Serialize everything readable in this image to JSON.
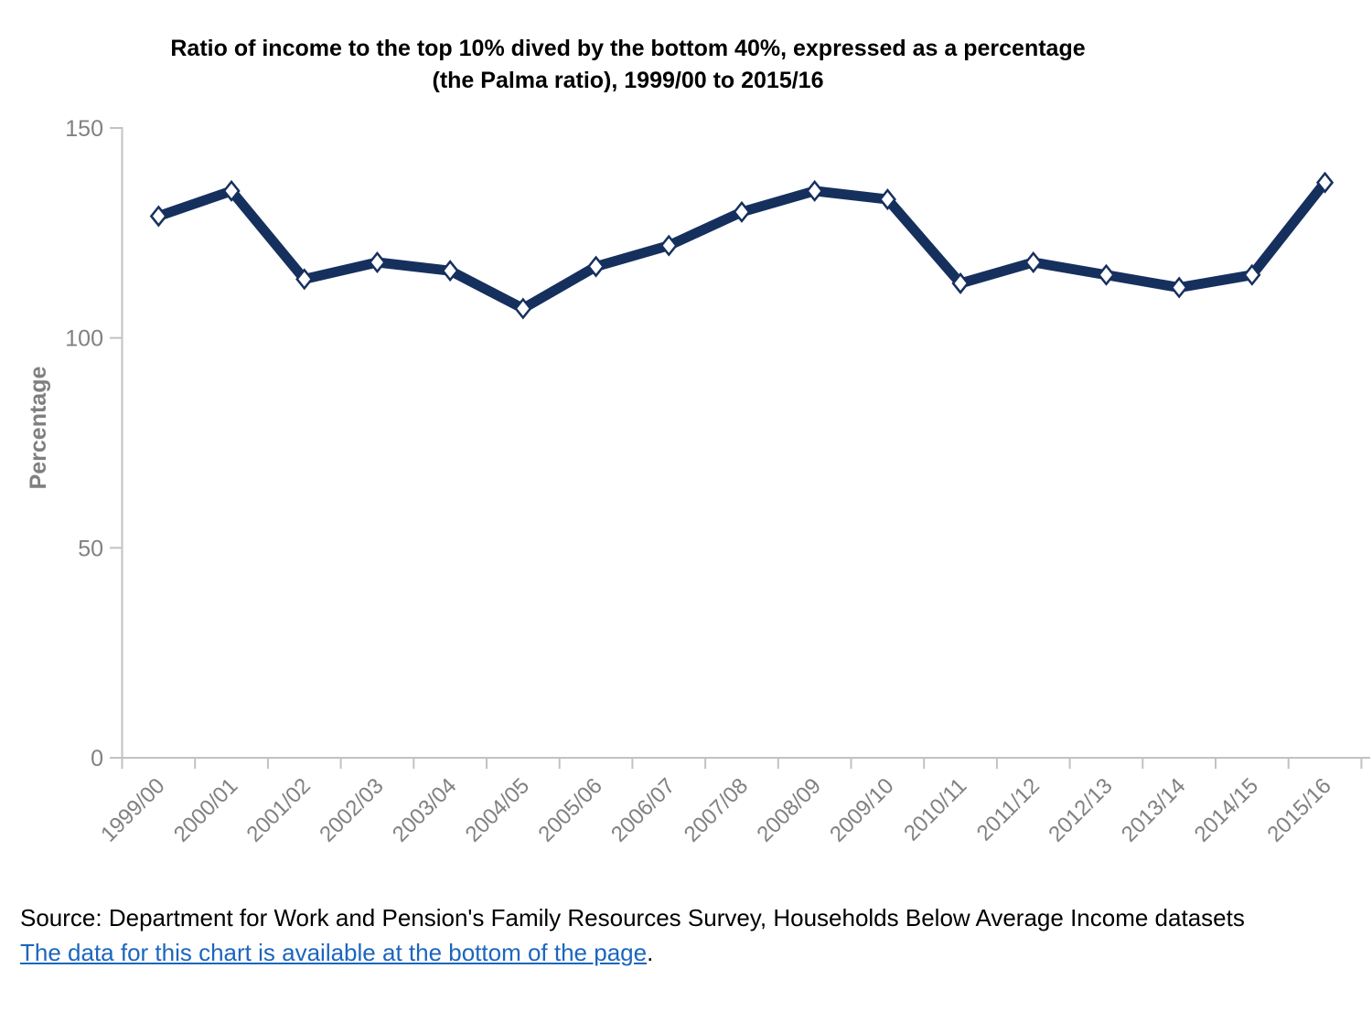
{
  "title": {
    "line1": "Ratio of income to the top 10% dived by the bottom 40%, expressed as a percentage",
    "line2": "(the Palma ratio), 1999/00 to 2015/16"
  },
  "chart_data": {
    "type": "line",
    "title": "Ratio of income to the top 10% dived by the bottom 40%, expressed as a percentage (the Palma ratio), 1999/00 to 2015/16",
    "categories": [
      "1999/00",
      "2000/01",
      "2001/02",
      "2002/03",
      "2003/04",
      "2004/05",
      "2005/06",
      "2006/07",
      "2007/08",
      "2008/09",
      "2009/10",
      "2010/11",
      "2011/12",
      "2012/13",
      "2013/14",
      "2014/15",
      "2015/16"
    ],
    "values": [
      129,
      135,
      114,
      118,
      116,
      107,
      117,
      122,
      130,
      135,
      133,
      113,
      118,
      115,
      112,
      115,
      137
    ],
    "xlabel": "",
    "ylabel": "Percentage",
    "ylim": [
      0,
      150
    ],
    "yticks": [
      0,
      50,
      100,
      150
    ],
    "grid": false,
    "legend": false,
    "marker": "white-diamond"
  },
  "colors": {
    "line": "#16305e",
    "marker_fill": "#ffffff",
    "axis": "#c2c2c2",
    "tick_label": "#818181",
    "title_text": "#000000",
    "link": "#1b65bf"
  },
  "source": {
    "prefix": "Source: Department for Work and Pension's Family Resources Survey, Households Below Average Income datasets",
    "link_text": "The data for this chart is available at the bottom of the page",
    "link_suffix": "."
  }
}
